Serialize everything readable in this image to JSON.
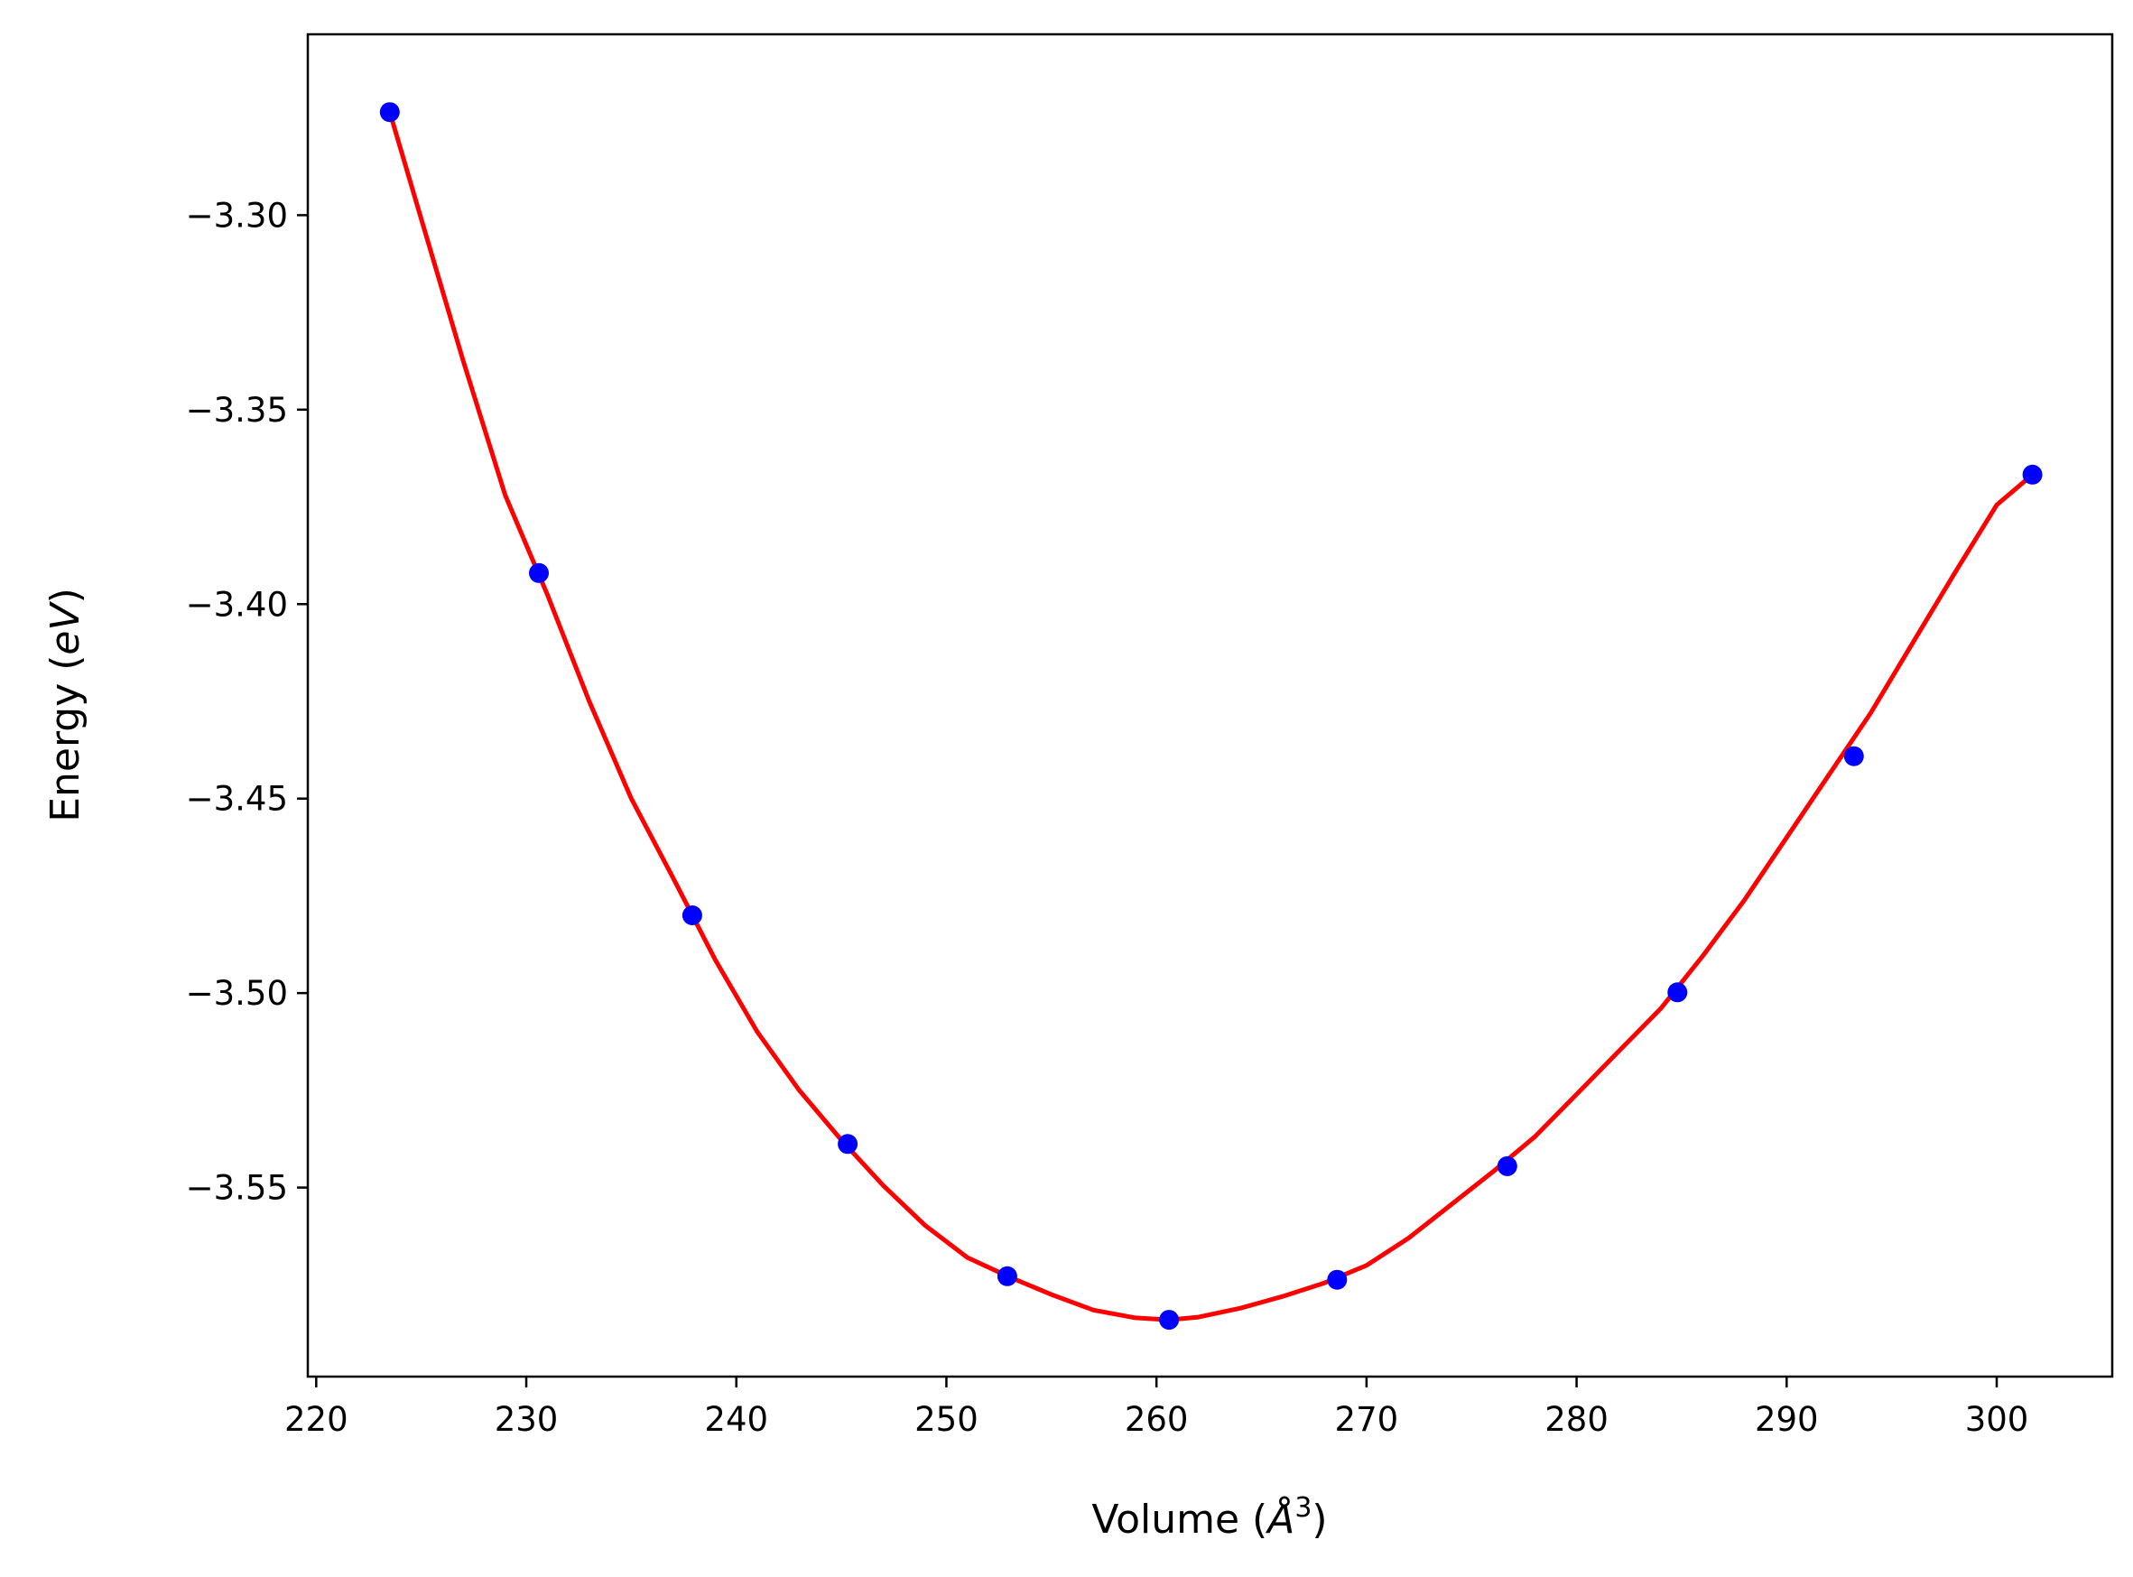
{
  "chart_data": {
    "type": "scatter",
    "title": "",
    "xlabel": {
      "text": "Volume (",
      "symbol": "Å",
      "superscript": "3",
      "close": ")"
    },
    "ylabel": {
      "text": "Energy (",
      "unit": "eV",
      "close": ")"
    },
    "xlim": [
      219.6,
      305.5
    ],
    "ylim": [
      -3.5986,
      -3.2535
    ],
    "xticks": [
      220,
      230,
      240,
      250,
      260,
      270,
      280,
      290,
      300
    ],
    "xtick_labels": [
      "220",
      "230",
      "240",
      "250",
      "260",
      "270",
      "280",
      "290",
      "300"
    ],
    "yticks": [
      -3.3,
      -3.35,
      -3.4,
      -3.45,
      -3.5,
      -3.55
    ],
    "ytick_labels": [
      "−3.30",
      "−3.35",
      "−3.40",
      "−3.45",
      "−3.50",
      "−3.55"
    ],
    "grid": false,
    "series": [
      {
        "kind": "points",
        "color": "#0000ff",
        "x": [
          223.5,
          230.6,
          237.9,
          245.3,
          252.9,
          260.6,
          268.6,
          276.7,
          284.8,
          293.2,
          301.7
        ],
        "y": [
          -3.2735,
          -3.392,
          -3.48,
          -3.5388,
          -3.5728,
          -3.584,
          -3.5737,
          -3.5445,
          -3.4998,
          -3.4391,
          -3.3667
        ]
      },
      {
        "kind": "fit-line",
        "color": "#ff0000",
        "x": [
          223.5,
          225,
          227,
          229,
          231,
          233,
          235,
          237,
          239,
          241,
          243,
          245,
          247,
          249,
          251,
          253,
          255,
          257,
          259,
          260.6,
          262,
          264,
          266,
          268,
          270,
          272,
          274,
          276,
          278,
          280,
          282,
          284,
          286,
          288,
          290,
          292,
          294,
          296,
          298,
          300,
          301.7
        ],
        "y": [
          -3.2735,
          -3.301,
          -3.3375,
          -3.372,
          -3.3975,
          -3.425,
          -3.45,
          -3.4705,
          -3.4915,
          -3.51,
          -3.525,
          -3.5378,
          -3.5495,
          -3.5598,
          -3.568,
          -3.573,
          -3.5775,
          -3.5815,
          -3.5835,
          -3.584,
          -3.5833,
          -3.581,
          -3.578,
          -3.5745,
          -3.57,
          -3.563,
          -3.5545,
          -3.546,
          -3.537,
          -3.526,
          -3.515,
          -3.504,
          -3.4905,
          -3.476,
          -3.46,
          -3.444,
          -3.428,
          -3.41,
          -3.392,
          -3.3745,
          -3.3667
        ]
      }
    ]
  }
}
